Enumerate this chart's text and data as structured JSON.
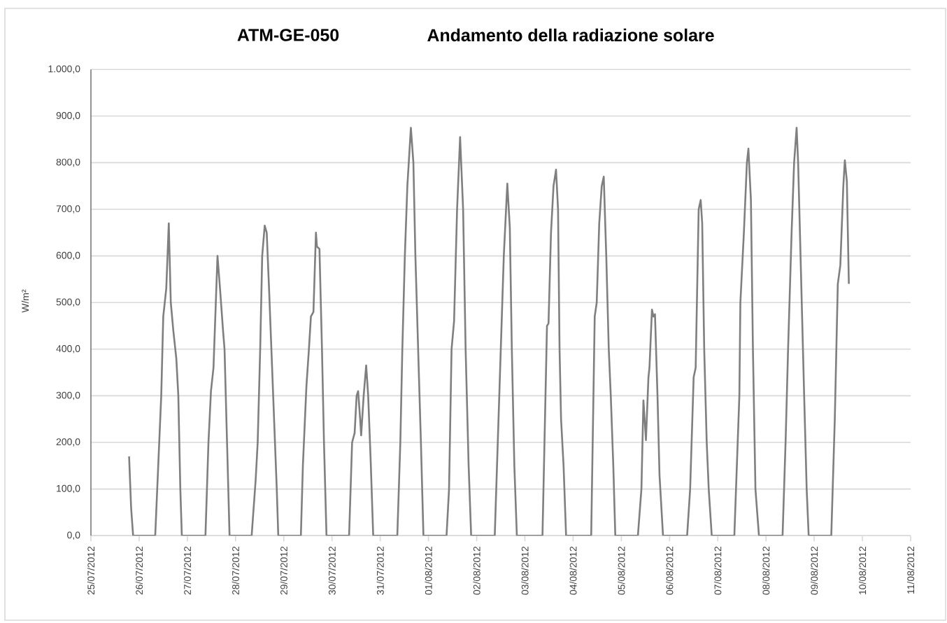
{
  "chart_data": {
    "type": "line",
    "title": "ATM-GE-050",
    "subtitle": "Andamento della radiazione solare",
    "ylabel": "W/m²",
    "x": [
      "2012-07-25T19:00",
      "2012-07-25T20:00",
      "2012-07-25T21:00",
      "2012-07-26T08:00",
      "2012-07-26T09:30",
      "2012-07-26T11:00",
      "2012-07-26T12:00",
      "2012-07-26T13:30",
      "2012-07-26T14:45",
      "2012-07-26T15:45",
      "2012-07-26T17:00",
      "2012-07-26T18:30",
      "2012-07-26T19:30",
      "2012-07-26T20:30",
      "2012-07-26T21:15",
      "2012-07-27T09:00",
      "2012-07-27T10:30",
      "2012-07-27T11:45",
      "2012-07-27T13:00",
      "2012-07-27T15:00",
      "2012-07-27T16:15",
      "2012-07-27T17:45",
      "2012-07-27T18:30",
      "2012-07-27T19:45",
      "2012-07-27T21:00",
      "2012-07-28T08:00",
      "2012-07-28T10:00",
      "2012-07-28T11:00",
      "2012-07-28T12:15",
      "2012-07-28T13:15",
      "2012-07-28T14:30",
      "2012-07-28T15:30",
      "2012-07-28T16:45",
      "2012-07-28T18:00",
      "2012-07-28T19:15",
      "2012-07-28T20:30",
      "2012-07-28T21:15",
      "2012-07-29T08:30",
      "2012-07-29T09:30",
      "2012-07-29T11:15",
      "2012-07-29T12:30",
      "2012-07-29T13:30",
      "2012-07-29T14:45",
      "2012-07-29T16:00",
      "2012-07-29T16:30",
      "2012-07-29T17:45",
      "2012-07-29T19:00",
      "2012-07-29T20:00",
      "2012-07-29T21:15",
      "2012-07-30T08:30",
      "2012-07-30T10:00",
      "2012-07-30T11:15",
      "2012-07-30T12:15",
      "2012-07-30T13:00",
      "2012-07-30T14:00",
      "2012-07-30T14:30",
      "2012-07-30T15:45",
      "2012-07-30T17:00",
      "2012-07-30T18:00",
      "2012-07-30T19:15",
      "2012-07-30T20:30",
      "2012-07-31T08:30",
      "2012-07-31T10:00",
      "2012-07-31T11:00",
      "2012-07-31T12:15",
      "2012-07-31T13:30",
      "2012-07-31T15:15",
      "2012-07-31T16:30",
      "2012-07-31T17:30",
      "2012-07-31T19:00",
      "2012-07-31T20:15",
      "2012-07-31T21:30",
      "2012-08-01T09:00",
      "2012-08-01T10:15",
      "2012-08-01T11:30",
      "2012-08-01T12:45",
      "2012-08-01T14:15",
      "2012-08-01T15:45",
      "2012-08-01T17:15",
      "2012-08-01T18:30",
      "2012-08-01T20:00",
      "2012-08-01T21:15",
      "2012-08-02T09:00",
      "2012-08-02T10:30",
      "2012-08-02T12:00",
      "2012-08-02T13:30",
      "2012-08-02T15:15",
      "2012-08-02T16:30",
      "2012-08-02T17:30",
      "2012-08-02T18:45",
      "2012-08-02T20:00",
      "2012-08-03T08:45",
      "2012-08-03T10:15",
      "2012-08-03T11:00",
      "2012-08-03T11:45",
      "2012-08-03T13:00",
      "2012-08-03T14:15",
      "2012-08-03T15:30",
      "2012-08-03T16:30",
      "2012-08-03T17:15",
      "2012-08-03T18:00",
      "2012-08-03T19:15",
      "2012-08-03T20:30",
      "2012-08-04T09:00",
      "2012-08-04T10:45",
      "2012-08-04T11:45",
      "2012-08-04T13:00",
      "2012-08-04T14:15",
      "2012-08-04T15:15",
      "2012-08-04T16:30",
      "2012-08-04T17:45",
      "2012-08-04T18:45",
      "2012-08-04T20:00",
      "2012-08-04T21:00",
      "2012-08-05T08:15",
      "2012-08-05T10:00",
      "2012-08-05T11:00",
      "2012-08-05T12:15",
      "2012-08-05T13:30",
      "2012-08-05T14:00",
      "2012-08-05T15:15",
      "2012-08-05T16:00",
      "2012-08-05T16:45",
      "2012-08-05T18:00",
      "2012-08-05T19:00",
      "2012-08-05T20:45",
      "2012-08-06T08:45",
      "2012-08-06T10:15",
      "2012-08-06T12:00",
      "2012-08-06T13:00",
      "2012-08-06T14:30",
      "2012-08-06T15:30",
      "2012-08-06T16:15",
      "2012-08-06T17:15",
      "2012-08-06T18:30",
      "2012-08-06T19:30",
      "2012-08-06T21:00",
      "2012-08-07T08:15",
      "2012-08-07T10:45",
      "2012-08-07T11:15",
      "2012-08-07T13:00",
      "2012-08-07T14:30",
      "2012-08-07T15:15",
      "2012-08-07T16:30",
      "2012-08-07T17:30",
      "2012-08-07T18:45",
      "2012-08-07T20:30",
      "2012-08-08T08:15",
      "2012-08-08T09:45",
      "2012-08-08T11:00",
      "2012-08-08T12:45",
      "2012-08-08T14:00",
      "2012-08-08T15:15",
      "2012-08-08T16:00",
      "2012-08-08T17:30",
      "2012-08-08T19:00",
      "2012-08-08T20:15",
      "2012-08-08T21:15",
      "2012-08-09T08:30",
      "2012-08-09T10:15",
      "2012-08-09T11:45",
      "2012-08-09T13:00",
      "2012-08-09T14:30",
      "2012-08-09T15:15",
      "2012-08-09T16:15",
      "2012-08-09T17:15"
    ],
    "series": [
      {
        "color": "#7f7f7f",
        "values": [
          170,
          60,
          0,
          0,
          150,
          300,
          470,
          530,
          670,
          500,
          440,
          380,
          300,
          100,
          0,
          0,
          200,
          310,
          360,
          600,
          530,
          440,
          400,
          200,
          0,
          0,
          120,
          200,
          400,
          600,
          665,
          650,
          520,
          380,
          240,
          100,
          0,
          0,
          150,
          320,
          400,
          470,
          480,
          650,
          620,
          615,
          400,
          200,
          0,
          0,
          200,
          220,
          300,
          310,
          250,
          215,
          300,
          365,
          300,
          160,
          0,
          0,
          200,
          400,
          600,
          750,
          875,
          800,
          600,
          380,
          200,
          0,
          0,
          100,
          400,
          460,
          700,
          855,
          700,
          400,
          150,
          0,
          0,
          200,
          400,
          600,
          755,
          660,
          400,
          150,
          0,
          0,
          300,
          450,
          455,
          650,
          750,
          785,
          700,
          400,
          250,
          150,
          0,
          0,
          470,
          500,
          670,
          750,
          770,
          600,
          400,
          300,
          150,
          0,
          0,
          100,
          290,
          205,
          340,
          360,
          485,
          470,
          475,
          300,
          130,
          0,
          0,
          100,
          340,
          360,
          700,
          720,
          670,
          400,
          200,
          100,
          0,
          0,
          300,
          500,
          650,
          800,
          830,
          720,
          400,
          100,
          0,
          0,
          200,
          400,
          650,
          800,
          875,
          800,
          550,
          300,
          100,
          0,
          0,
          250,
          540,
          580,
          750,
          805,
          760,
          540
        ]
      }
    ],
    "xlim": [
      "2012-07-25",
      "2012-08-11"
    ],
    "xticks": [
      {
        "value": "2012-07-25",
        "label": "25/07/2012"
      },
      {
        "value": "2012-07-26",
        "label": "26/07/2012"
      },
      {
        "value": "2012-07-27",
        "label": "27/07/2012"
      },
      {
        "value": "2012-07-28",
        "label": "28/07/2012"
      },
      {
        "value": "2012-07-29",
        "label": "29/07/2012"
      },
      {
        "value": "2012-07-30",
        "label": "30/07/2012"
      },
      {
        "value": "2012-07-31",
        "label": "31/07/2012"
      },
      {
        "value": "2012-08-01",
        "label": "01/08/2012"
      },
      {
        "value": "2012-08-02",
        "label": "02/08/2012"
      },
      {
        "value": "2012-08-03",
        "label": "03/08/2012"
      },
      {
        "value": "2012-08-04",
        "label": "04/08/2012"
      },
      {
        "value": "2012-08-05",
        "label": "05/08/2012"
      },
      {
        "value": "2012-08-06",
        "label": "06/08/2012"
      },
      {
        "value": "2012-08-07",
        "label": "07/08/2012"
      },
      {
        "value": "2012-08-08",
        "label": "08/08/2012"
      },
      {
        "value": "2012-08-09",
        "label": "09/08/2012"
      },
      {
        "value": "2012-08-10",
        "label": "10/08/2012"
      },
      {
        "value": "2012-08-11",
        "label": "11/08/2012"
      }
    ],
    "ylim": [
      0,
      1000
    ],
    "yticks": [
      {
        "value": 0,
        "label": "0,0"
      },
      {
        "value": 100,
        "label": "100,0"
      },
      {
        "value": 200,
        "label": "200,0"
      },
      {
        "value": 300,
        "label": "300,0"
      },
      {
        "value": 400,
        "label": "400,0"
      },
      {
        "value": 500,
        "label": "500,0"
      },
      {
        "value": 600,
        "label": "600,0"
      },
      {
        "value": 700,
        "label": "700,0"
      },
      {
        "value": 800,
        "label": "800,0"
      },
      {
        "value": 900,
        "label": "900,0"
      },
      {
        "value": 1000,
        "label": "1.000,0"
      }
    ],
    "grid": "y"
  }
}
